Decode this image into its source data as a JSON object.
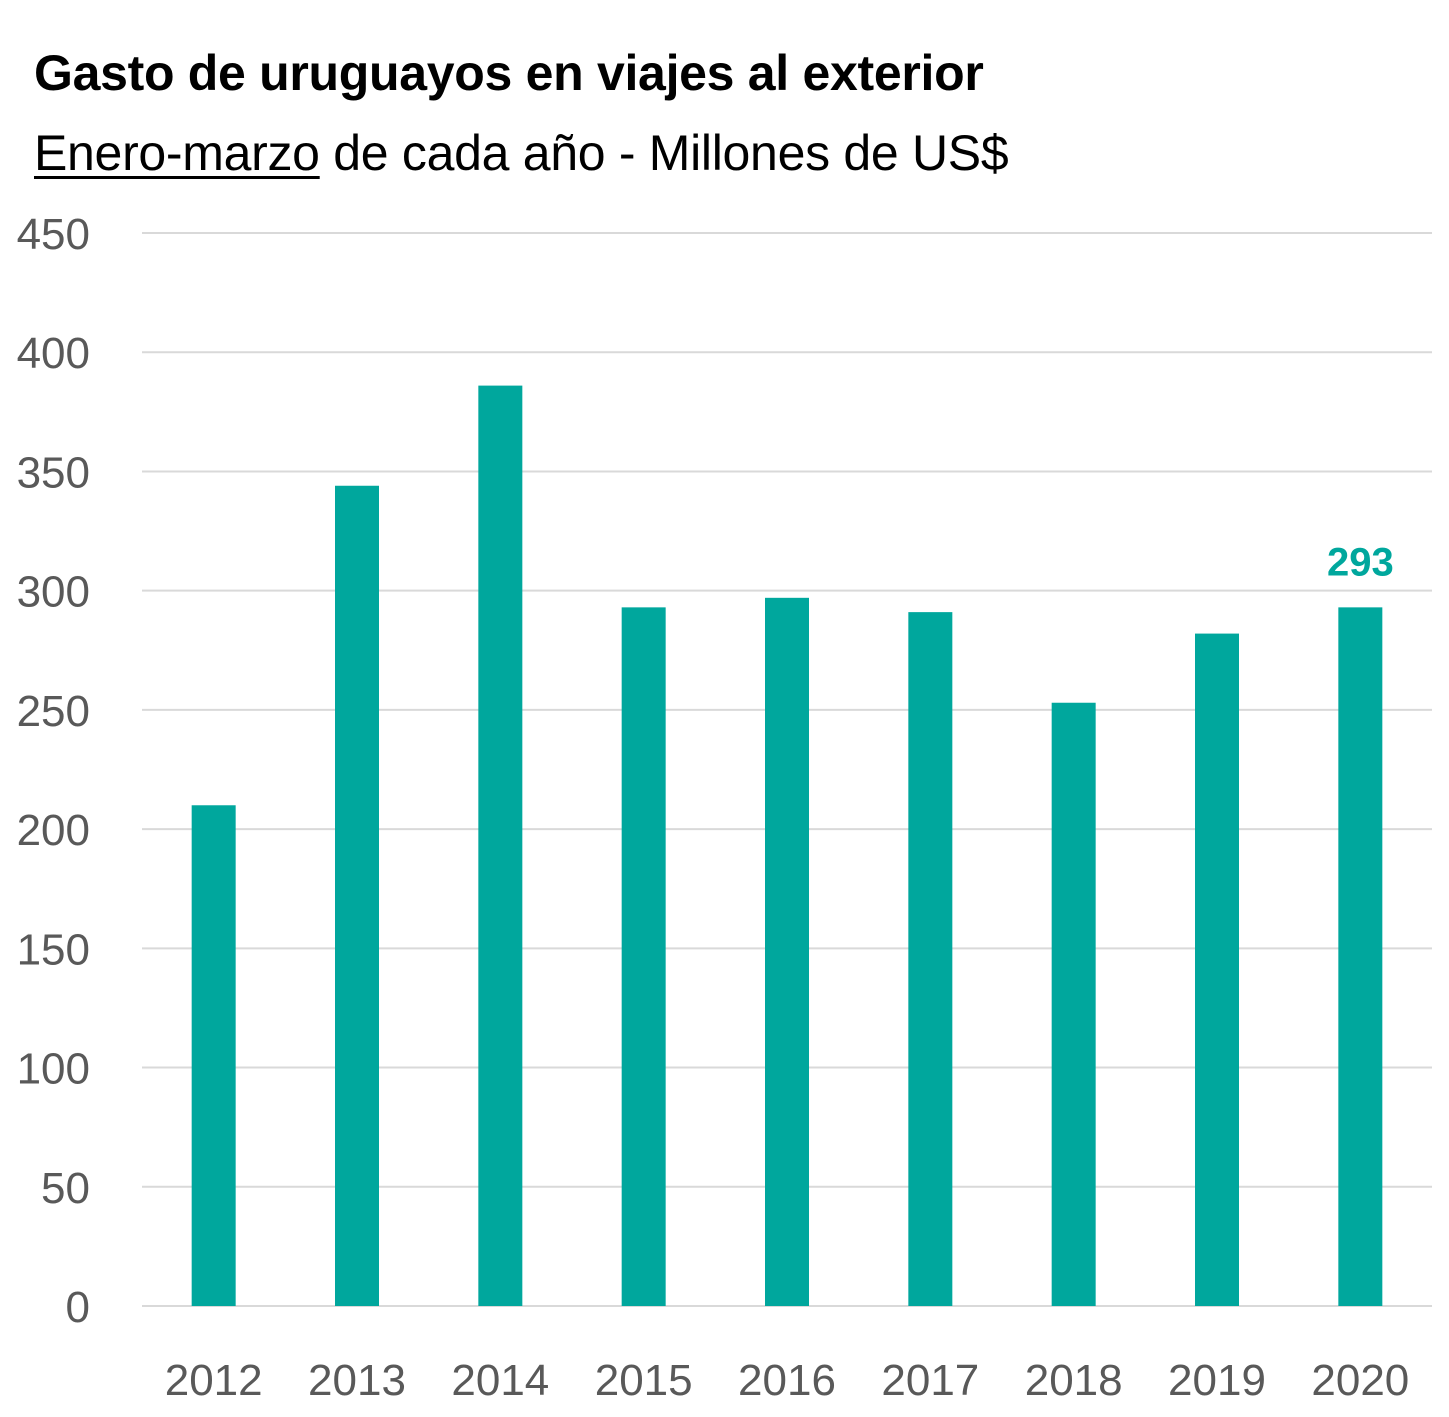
{
  "title": "Gasto de uruguayos en viajes al exterior",
  "subtitle_underlined": "Enero-marzo",
  "subtitle_rest": " de cada año - Millones de US$",
  "colors": {
    "bar": "#00a79d",
    "label": "#00a79d",
    "grid": "#d9d9d9",
    "tick_text": "#595959"
  },
  "chart_data": {
    "type": "bar",
    "title": "Gasto de uruguayos en viajes al exterior",
    "subtitle": "Enero-marzo de cada año - Millones de US$",
    "categories": [
      "2012",
      "2013",
      "2014",
      "2015",
      "2016",
      "2017",
      "2018",
      "2019",
      "2020"
    ],
    "values": [
      210,
      344,
      386,
      293,
      297,
      291,
      253,
      282,
      293
    ],
    "data_labels": [
      null,
      null,
      null,
      null,
      null,
      null,
      null,
      null,
      "293"
    ],
    "ylim": [
      0,
      450
    ],
    "yticks": [
      0,
      50,
      100,
      150,
      200,
      250,
      300,
      350,
      400,
      450
    ],
    "xlabel": "",
    "ylabel": "",
    "grid": true,
    "legend": "none"
  }
}
